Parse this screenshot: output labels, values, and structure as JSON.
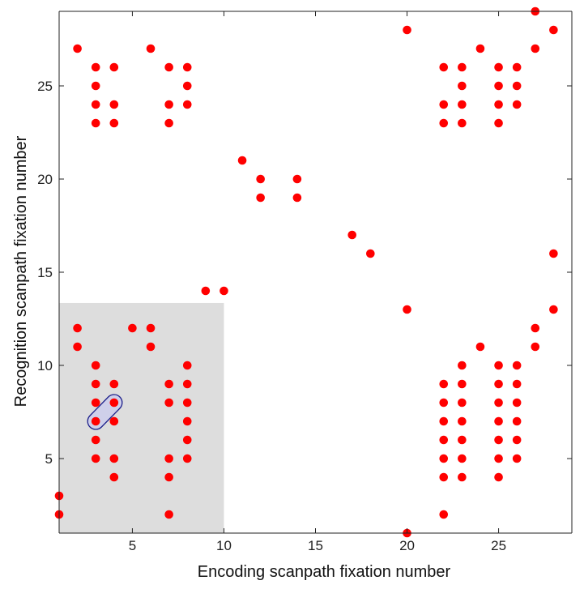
{
  "chart_data": {
    "type": "scatter",
    "xlabel": "Encoding scanpath fixation number",
    "ylabel": "Recognition scanpath fixation number",
    "xlim": [
      1,
      29
    ],
    "ylim": [
      1,
      29
    ],
    "xticks": [
      5,
      10,
      15,
      20,
      25
    ],
    "yticks": [
      5,
      10,
      15,
      20,
      25
    ],
    "grid": false,
    "point_color": "#ff0000",
    "shaded_region": {
      "x": [
        1,
        10
      ],
      "y": [
        1,
        13.35
      ],
      "color": "#dddddd"
    },
    "highlight": {
      "from": [
        3,
        7
      ],
      "to": [
        4,
        8
      ],
      "fill": "#cfd0ea",
      "stroke": "#1c1f8a"
    },
    "points": [
      [
        1,
        2
      ],
      [
        1,
        3
      ],
      [
        2,
        11
      ],
      [
        2,
        12
      ],
      [
        2,
        27
      ],
      [
        3,
        5
      ],
      [
        3,
        6
      ],
      [
        3,
        7
      ],
      [
        3,
        8
      ],
      [
        3,
        9
      ],
      [
        3,
        10
      ],
      [
        3,
        23
      ],
      [
        3,
        24
      ],
      [
        3,
        25
      ],
      [
        3,
        26
      ],
      [
        4,
        4
      ],
      [
        4,
        5
      ],
      [
        4,
        7
      ],
      [
        4,
        8
      ],
      [
        4,
        9
      ],
      [
        4,
        23
      ],
      [
        4,
        24
      ],
      [
        4,
        26
      ],
      [
        5,
        12
      ],
      [
        6,
        11
      ],
      [
        6,
        12
      ],
      [
        6,
        27
      ],
      [
        7,
        2
      ],
      [
        7,
        4
      ],
      [
        7,
        5
      ],
      [
        7,
        8
      ],
      [
        7,
        9
      ],
      [
        7,
        23
      ],
      [
        7,
        24
      ],
      [
        7,
        26
      ],
      [
        8,
        5
      ],
      [
        8,
        6
      ],
      [
        8,
        7
      ],
      [
        8,
        8
      ],
      [
        8,
        9
      ],
      [
        8,
        10
      ],
      [
        8,
        24
      ],
      [
        8,
        25
      ],
      [
        8,
        26
      ],
      [
        9,
        14
      ],
      [
        10,
        14
      ],
      [
        11,
        21
      ],
      [
        12,
        19
      ],
      [
        12,
        20
      ],
      [
        14,
        19
      ],
      [
        14,
        20
      ],
      [
        17,
        17
      ],
      [
        18,
        16
      ],
      [
        20,
        1
      ],
      [
        20,
        13
      ],
      [
        20,
        28
      ],
      [
        22,
        2
      ],
      [
        22,
        4
      ],
      [
        22,
        5
      ],
      [
        22,
        6
      ],
      [
        22,
        7
      ],
      [
        22,
        8
      ],
      [
        22,
        9
      ],
      [
        22,
        23
      ],
      [
        22,
        24
      ],
      [
        22,
        26
      ],
      [
        23,
        4
      ],
      [
        23,
        5
      ],
      [
        23,
        6
      ],
      [
        23,
        7
      ],
      [
        23,
        8
      ],
      [
        23,
        9
      ],
      [
        23,
        10
      ],
      [
        23,
        23
      ],
      [
        23,
        24
      ],
      [
        23,
        25
      ],
      [
        23,
        26
      ],
      [
        24,
        11
      ],
      [
        24,
        27
      ],
      [
        25,
        4
      ],
      [
        25,
        5
      ],
      [
        25,
        6
      ],
      [
        25,
        7
      ],
      [
        25,
        8
      ],
      [
        25,
        9
      ],
      [
        25,
        10
      ],
      [
        25,
        23
      ],
      [
        25,
        24
      ],
      [
        25,
        25
      ],
      [
        25,
        26
      ],
      [
        26,
        5
      ],
      [
        26,
        6
      ],
      [
        26,
        7
      ],
      [
        26,
        8
      ],
      [
        26,
        9
      ],
      [
        26,
        10
      ],
      [
        26,
        24
      ],
      [
        26,
        25
      ],
      [
        26,
        26
      ],
      [
        27,
        11
      ],
      [
        27,
        12
      ],
      [
        27,
        27
      ],
      [
        27,
        29
      ],
      [
        28,
        13
      ],
      [
        28,
        16
      ],
      [
        28,
        28
      ]
    ]
  }
}
